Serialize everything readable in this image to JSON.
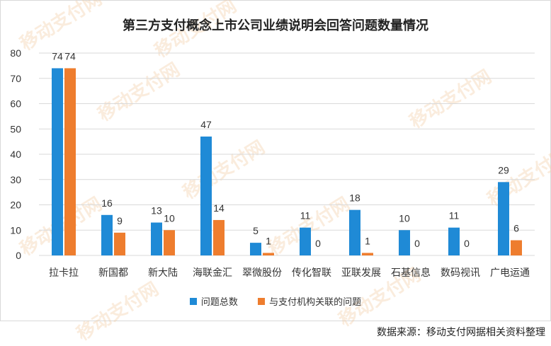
{
  "chart_data": {
    "type": "bar",
    "title": "第三方支付概念上市公司业绩说明会回答问题数量情况",
    "categories": [
      "拉卡拉",
      "新国都",
      "新大陆",
      "海联金汇",
      "翠微股份",
      "传化智联",
      "亚联发展",
      "石基信息",
      "数码视讯",
      "广电运通"
    ],
    "series": [
      {
        "name": "问题总数",
        "values": [
          74,
          16,
          13,
          47,
          5,
          11,
          18,
          10,
          11,
          29
        ],
        "color": "#1f8ad6"
      },
      {
        "name": "与支付机构关联的问题",
        "values": [
          74,
          9,
          10,
          14,
          1,
          0,
          1,
          0,
          0,
          6
        ],
        "color": "#ee7d2e"
      }
    ],
    "ylim": [
      0,
      80
    ],
    "yticks": [
      0,
      10,
      20,
      30,
      40,
      50,
      60,
      70,
      80
    ],
    "grid": true,
    "legend_position": "bottom"
  },
  "source": "数据来源：移动支付网据相关资料整理",
  "watermark_text": "移动支付网"
}
